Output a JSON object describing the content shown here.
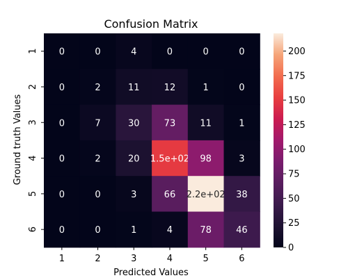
{
  "chart_data": {
    "type": "heatmap",
    "title": "Confusion Matrix",
    "xlabel": "Predicted Values",
    "ylabel": "Ground truth Values",
    "x_categories": [
      "1",
      "2",
      "3",
      "4",
      "5",
      "6"
    ],
    "y_categories": [
      "1",
      "2",
      "3",
      "4",
      "5",
      "6"
    ],
    "values": [
      [
        0,
        0,
        4,
        0,
        0,
        0
      ],
      [
        0,
        2,
        11,
        12,
        1,
        0
      ],
      [
        0,
        7,
        30,
        73,
        11,
        1
      ],
      [
        0,
        2,
        20,
        150,
        98,
        3
      ],
      [
        0,
        0,
        3,
        66,
        220,
        38
      ],
      [
        0,
        0,
        1,
        4,
        78,
        46
      ]
    ],
    "cell_labels": [
      [
        "0",
        "0",
        "4",
        "0",
        "0",
        "0"
      ],
      [
        "0",
        "2",
        "11",
        "12",
        "1",
        "0"
      ],
      [
        "0",
        "7",
        "30",
        "73",
        "11",
        "1"
      ],
      [
        "0",
        "2",
        "20",
        "1.5e+02",
        "98",
        "3"
      ],
      [
        "0",
        "0",
        "3",
        "66",
        "2.2e+02",
        "38"
      ],
      [
        "0",
        "0",
        "1",
        "4",
        "78",
        "46"
      ]
    ],
    "colorbar": {
      "colormap": "rocket",
      "range": [
        0,
        218
      ],
      "ticks": [
        0,
        25,
        50,
        75,
        100,
        125,
        150,
        175,
        200
      ],
      "tick_labels": [
        "0",
        "25",
        "50",
        "75",
        "100",
        "125",
        "150",
        "175",
        "200"
      ]
    },
    "grid": false,
    "legend": "none"
  }
}
